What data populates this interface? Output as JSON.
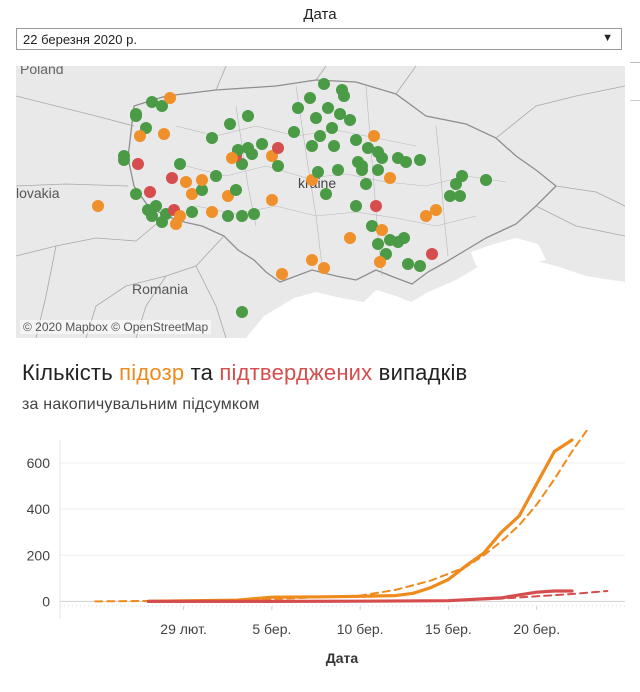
{
  "filter": {
    "label": "Дата",
    "selected": "22 березня 2020 р."
  },
  "map": {
    "attribution": "© 2020 Mapbox © OpenStreetMap",
    "place_labels": [
      "Poland",
      "lovakia",
      "kraine",
      "Romania"
    ],
    "colors": {
      "land": "#e9e9e9",
      "sea": "#ffffff",
      "borders": "#9c9c9c",
      "green": "#4a9a46",
      "orange": "#f0902a",
      "red": "#d64d4d"
    }
  },
  "heading": {
    "part1": "Кількість ",
    "suspected": "підозр",
    "part2": " та ",
    "confirmed": "підтверджених",
    "part3": " випадків",
    "subtitle": "за накопичувальним підсумком"
  },
  "chart_data": {
    "type": "line",
    "xlabel": "Дата",
    "ylabel": "",
    "ylim": [
      -20,
      700
    ],
    "yticks": [
      0,
      200,
      400,
      600
    ],
    "x_tick_labels": [
      "29 лют.",
      "5 бер.",
      "10 бер.",
      "15 бер.",
      "20 бер."
    ],
    "x_tick_days": [
      0,
      5,
      10,
      15,
      20
    ],
    "series": [
      {
        "color": "#ef8a1c",
        "style": "solid",
        "x": [
          -2,
          0,
          3,
          5,
          8,
          10,
          12,
          13,
          14,
          15,
          16,
          17,
          18,
          19,
          20,
          21,
          22
        ],
        "values": [
          0,
          2,
          5,
          18,
          20,
          22,
          25,
          35,
          60,
          95,
          155,
          210,
          300,
          370,
          510,
          650,
          700
        ]
      },
      {
        "color": "#ef8a1c",
        "style": "dashed",
        "x": [
          -5,
          0,
          5,
          10,
          12,
          14,
          16,
          17,
          18,
          19,
          20,
          21,
          22,
          23
        ],
        "values": [
          0,
          3,
          10,
          25,
          50,
          90,
          150,
          200,
          260,
          330,
          420,
          530,
          650,
          760
        ]
      },
      {
        "color": "#d64d4d",
        "style": "solid",
        "x": [
          -2,
          5,
          10,
          15,
          18,
          19,
          20,
          21,
          22
        ],
        "values": [
          0,
          0,
          1,
          3,
          15,
          28,
          40,
          45,
          45
        ]
      },
      {
        "color": "#d64d4d",
        "style": "dashed",
        "x": [
          -2,
          5,
          10,
          15,
          18,
          20,
          22,
          24
        ],
        "values": [
          0,
          0,
          1,
          3,
          12,
          22,
          32,
          45
        ]
      }
    ]
  }
}
